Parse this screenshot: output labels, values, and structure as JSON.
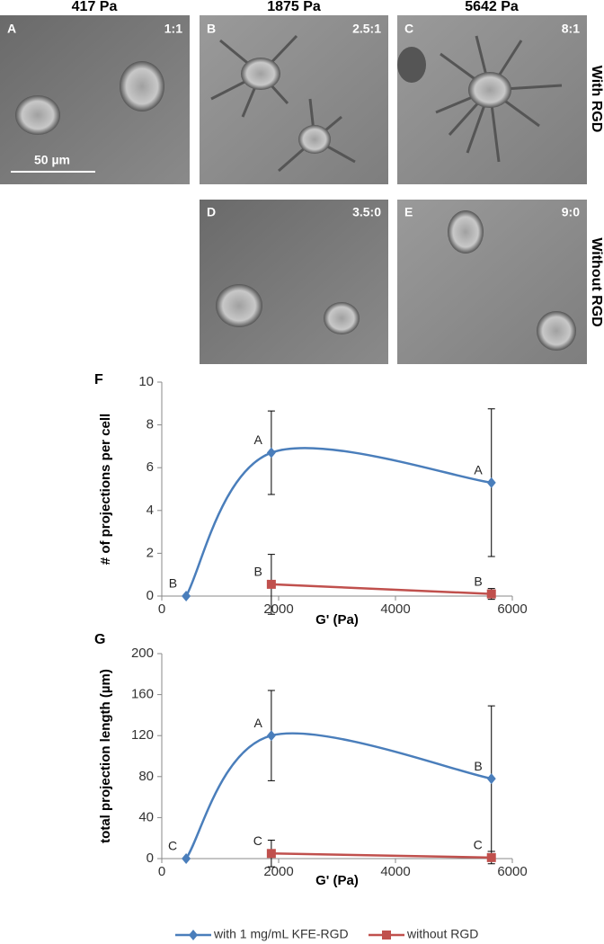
{
  "panels": {
    "columns": [
      "417 Pa",
      "1875 Pa",
      "5642 Pa"
    ],
    "rows": [
      "With RGD",
      "Without RGD"
    ],
    "images": [
      {
        "letter": "A",
        "ratio": "1:1",
        "scale_bar": "50 µm"
      },
      {
        "letter": "B",
        "ratio": "2.5:1"
      },
      {
        "letter": "C",
        "ratio": "8:1"
      },
      {
        "letter": "D",
        "ratio": "3.5:0"
      },
      {
        "letter": "E",
        "ratio": "9:0"
      }
    ]
  },
  "chart_data": [
    {
      "type": "line",
      "panel_label": "F",
      "x_label": "G' (Pa)",
      "y_label": "# of projections per cell",
      "xlim": [
        0,
        6000
      ],
      "xticks": [
        0,
        2000,
        4000,
        6000
      ],
      "ylim": [
        0,
        10
      ],
      "yticks": [
        0,
        2,
        4,
        6,
        8,
        10
      ],
      "series": [
        {
          "name": "with 1 mg/mL KFE-RGD",
          "color": "#4a7ebb",
          "marker": "diamond",
          "smooth": true,
          "x": [
            417,
            1875,
            5642
          ],
          "values": [
            0,
            6.7,
            5.3
          ],
          "errors": [
            0,
            1.95,
            3.45
          ],
          "annotations": [
            "B",
            "A",
            "A"
          ]
        },
        {
          "name": "without RGD",
          "color": "#c0504d",
          "marker": "square",
          "smooth": false,
          "x": [
            1875,
            5642
          ],
          "values": [
            0.55,
            0.1
          ],
          "errors": [
            1.4,
            0.25
          ],
          "annotations": [
            "B",
            "B"
          ]
        }
      ]
    },
    {
      "type": "line",
      "panel_label": "G",
      "x_label": "G' (Pa)",
      "y_label": "total projection length (µm)",
      "xlim": [
        0,
        6000
      ],
      "xticks": [
        0,
        2000,
        4000,
        6000
      ],
      "ylim": [
        0,
        200
      ],
      "yticks": [
        0,
        40,
        80,
        120,
        160,
        200
      ],
      "series": [
        {
          "name": "with 1 mg/mL KFE-RGD",
          "color": "#4a7ebb",
          "marker": "diamond",
          "smooth": true,
          "x": [
            417,
            1875,
            5642
          ],
          "values": [
            0,
            120,
            78
          ],
          "errors": [
            0,
            44,
            71
          ],
          "annotations": [
            "C",
            "A",
            "B"
          ]
        },
        {
          "name": "without RGD",
          "color": "#c0504d",
          "marker": "square",
          "smooth": false,
          "x": [
            1875,
            5642
          ],
          "values": [
            5,
            1
          ],
          "errors": [
            13,
            6
          ],
          "annotations": [
            "C",
            "C"
          ]
        }
      ]
    }
  ]
}
